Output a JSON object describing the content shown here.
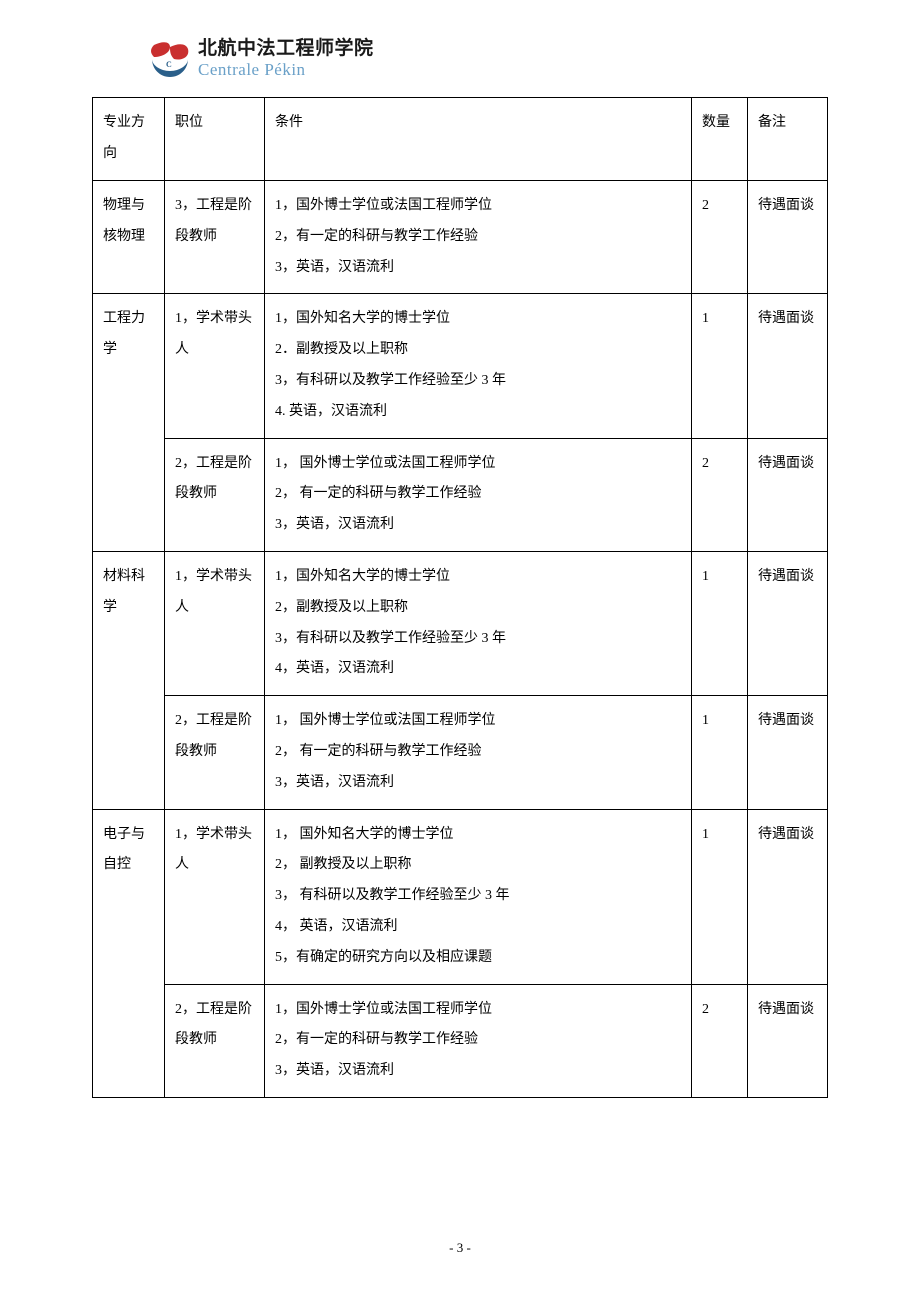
{
  "logo": {
    "name_cn": "北航中法工程师学院",
    "name_en": "Centrale Pékin",
    "mark_color_red": "#c92f2f",
    "mark_color_blue": "#2a5f8a"
  },
  "table": {
    "headers": {
      "major": "专业方向",
      "position": "职位",
      "conditions": "条件",
      "quantity": "数量",
      "note": "备注"
    },
    "rows": [
      {
        "major": "物理与核物理",
        "major_rowspan": 1,
        "position": "3，工程是阶段教师",
        "conditions": "1，国外博士学位或法国工程师学位\n2，有一定的科研与教学工作经验\n3，英语，汉语流利",
        "quantity": "2",
        "note": "待遇面谈"
      },
      {
        "major": "工程力学",
        "major_rowspan": 2,
        "position": "1，学术带头人",
        "conditions": "1，国外知名大学的博士学位\n2．副教授及以上职称\n3，有科研以及教学工作经验至少 3 年\n4. 英语，汉语流利",
        "quantity": "1",
        "note": "待遇面谈"
      },
      {
        "position": "2，工程是阶段教师",
        "conditions": "1， 国外博士学位或法国工程师学位\n2， 有一定的科研与教学工作经验\n3，英语，汉语流利",
        "quantity": "2",
        "note": "待遇面谈"
      },
      {
        "major": "材料科学",
        "major_rowspan": 2,
        "position": "1，学术带头人",
        "conditions": "1，国外知名大学的博士学位\n2，副教授及以上职称\n3，有科研以及教学工作经验至少 3 年\n4，英语，汉语流利",
        "quantity": "1",
        "note": "待遇面谈"
      },
      {
        "position": "2，工程是阶段教师",
        "conditions": "1， 国外博士学位或法国工程师学位\n2， 有一定的科研与教学工作经验\n3，英语，汉语流利",
        "quantity": "1",
        "note": "待遇面谈"
      },
      {
        "major": "电子与自控",
        "major_rowspan": 2,
        "position": "1，学术带头人",
        "conditions": "1， 国外知名大学的博士学位\n2， 副教授及以上职称\n3， 有科研以及教学工作经验至少 3 年\n4， 英语，汉语流利\n5，有确定的研究方向以及相应课题",
        "quantity": "1",
        "note": "待遇面谈"
      },
      {
        "position": "2，工程是阶段教师",
        "conditions": "1，国外博士学位或法国工程师学位\n2，有一定的科研与教学工作经验\n3，英语，汉语流利",
        "quantity": "2",
        "note": "待遇面谈"
      }
    ]
  },
  "footer": {
    "page": "- 3 -"
  }
}
